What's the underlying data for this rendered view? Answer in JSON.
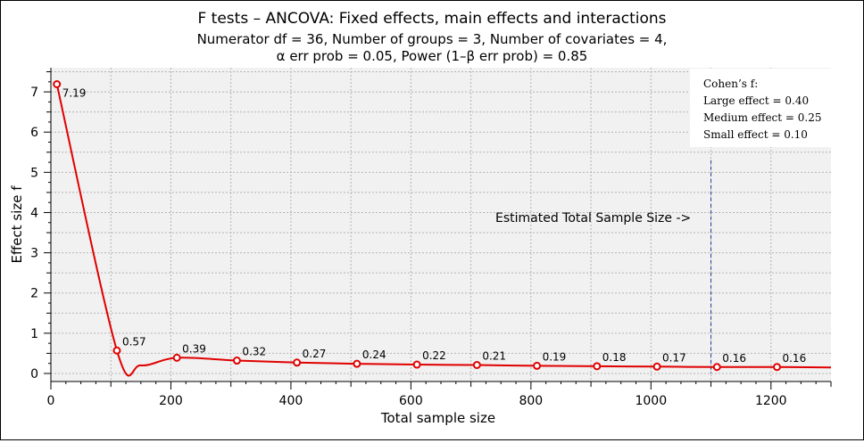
{
  "chart_data": {
    "type": "line",
    "title": "F tests – ANCOVA: Fixed effects, main effects and interactions",
    "subtitle_lines": [
      "Numerator df = 36, Number of groups = 3, Number of covariates = 4,",
      "α err prob = 0.05, Power (1–β err prob) = 0.85"
    ],
    "xlabel": "Total sample size",
    "ylabel": "Effect size f",
    "xlim": [
      0,
      1300
    ],
    "ylim": [
      -0.2,
      7.6
    ],
    "xticks": [
      0,
      200,
      400,
      600,
      800,
      1000,
      1200
    ],
    "yticks": [
      0,
      1,
      2,
      3,
      4,
      5,
      6,
      7
    ],
    "grid": true,
    "series": [
      {
        "name": "Effect size f",
        "color": "#e00000",
        "points": [
          {
            "x": 10,
            "y": 7.19,
            "label": "7.19"
          },
          {
            "x": 110,
            "y": 0.57,
            "label": "0.57"
          },
          {
            "x": 210,
            "y": 0.39,
            "label": "0.39"
          },
          {
            "x": 310,
            "y": 0.32,
            "label": "0.32"
          },
          {
            "x": 410,
            "y": 0.27,
            "label": "0.27"
          },
          {
            "x": 510,
            "y": 0.24,
            "label": "0.24"
          },
          {
            "x": 610,
            "y": 0.22,
            "label": "0.22"
          },
          {
            "x": 710,
            "y": 0.21,
            "label": "0.21"
          },
          {
            "x": 810,
            "y": 0.19,
            "label": "0.19"
          },
          {
            "x": 910,
            "y": 0.18,
            "label": "0.18"
          },
          {
            "x": 1010,
            "y": 0.17,
            "label": "0.17"
          },
          {
            "x": 1110,
            "y": 0.16,
            "label": "0.16"
          },
          {
            "x": 1210,
            "y": 0.16,
            "label": "0.16"
          }
        ],
        "curve_extra": [
          {
            "x": 150,
            "y": 0.2
          },
          {
            "x": 1300,
            "y": 0.15
          }
        ]
      }
    ],
    "marker_line": {
      "x": 1100,
      "y_from": 0,
      "y_to": 5.3,
      "color": "#1f3a93"
    },
    "annotation": {
      "text": "Estimated Total Sample Size ->",
      "x": 1100,
      "y": 3.9
    },
    "legend": {
      "position": "top-right",
      "lines": [
        "Cohen’s f:",
        "Large effect = 0.40",
        "Medium effect = 0.25",
        "Small effect = 0.10"
      ]
    }
  }
}
